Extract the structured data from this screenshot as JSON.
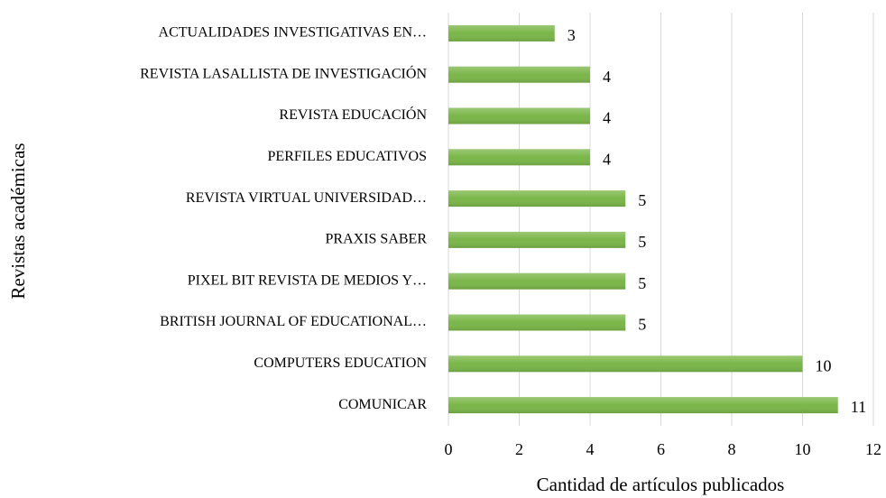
{
  "chart_data": {
    "type": "bar",
    "orientation": "horizontal",
    "categories": [
      "ACTUALIDADES INVESTIGATIVAS EN…",
      "REVISTA LASALLISTA DE INVESTIGACIÓN",
      "REVISTA EDUCACIÓN",
      "PERFILES EDUCATIVOS",
      "REVISTA VIRTUAL UNIVERSIDAD…",
      "PRAXIS SABER",
      "PIXEL BIT REVISTA DE MEDIOS Y…",
      "BRITISH JOURNAL OF EDUCATIONAL…",
      "COMPUTERS EDUCATION",
      "COMUNICAR"
    ],
    "values": [
      3,
      4,
      4,
      4,
      5,
      5,
      5,
      5,
      10,
      11
    ],
    "color": "#7ab648",
    "xlim": [
      0,
      12
    ],
    "xticks": [
      0,
      2,
      4,
      6,
      8,
      10,
      12
    ],
    "grid": true,
    "x_label": "Cantidad de artículos publicados",
    "y_label": "Revistas académicas"
  }
}
